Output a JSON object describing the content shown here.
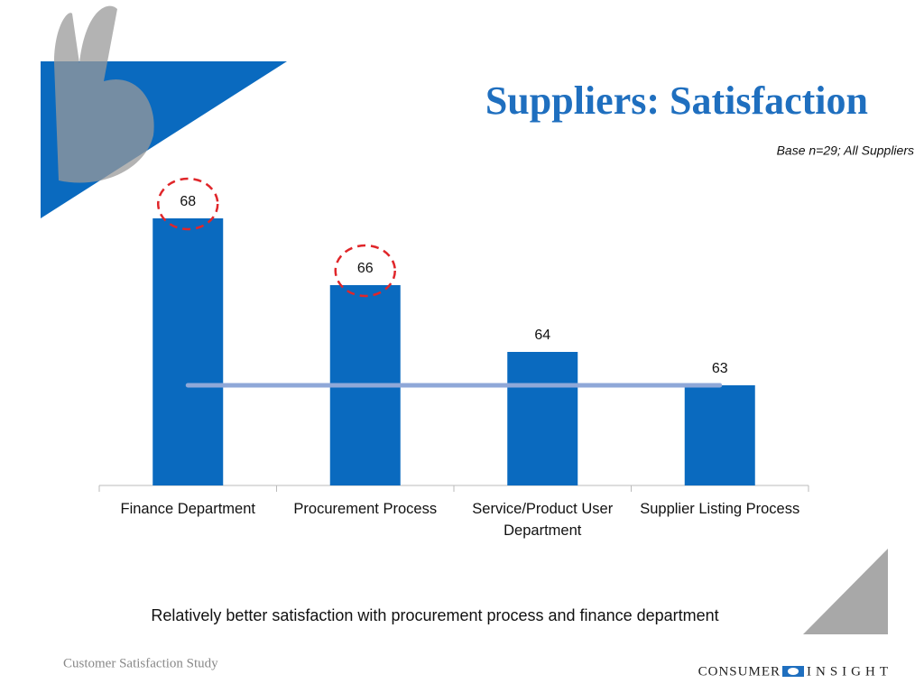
{
  "chart_data": {
    "type": "bar",
    "title": "Suppliers: Satisfaction",
    "subtitle": "Base n=29; All Suppliers",
    "categories": [
      "Finance Department",
      "Procurement Process",
      "Service/Product User Department",
      "Supplier Listing Process"
    ],
    "values": [
      68,
      66,
      64,
      63
    ],
    "color": "#0a6abf",
    "ylim": [
      60,
      70
    ],
    "average_line": 63,
    "average_line_color": "#8fa8d8",
    "highlighted": [
      true,
      true,
      false,
      false
    ],
    "highlight_color": "#e0262a",
    "annotation": "Relatively better satisfaction with procurement process and finance department"
  },
  "footer": {
    "study": "Customer Satisfaction Study",
    "logo_left": "CONSUMER",
    "logo_right": "INSIGHT"
  }
}
